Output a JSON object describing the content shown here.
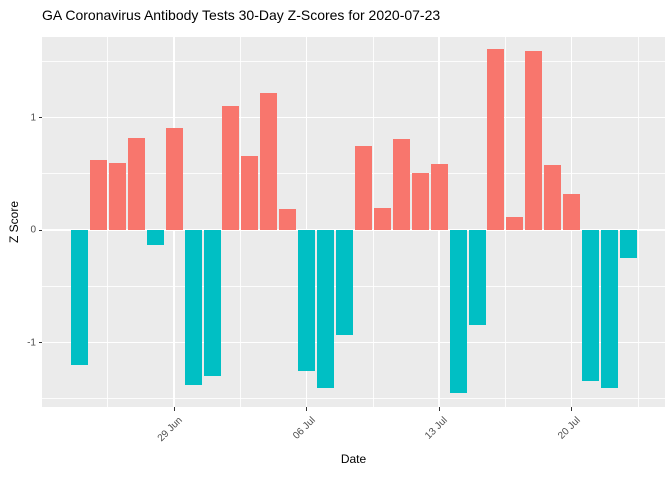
{
  "title": "GA Coronavirus Antibody Tests 30-Day Z-Scores for 2020-07-23",
  "chart_data": {
    "type": "bar",
    "title": "GA Coronavirus Antibody Tests 30-Day Z-Scores for 2020-07-23",
    "xlabel": "Date",
    "ylabel": "Z Score",
    "dates": [
      "2020-06-24",
      "2020-06-25",
      "2020-06-26",
      "2020-06-27",
      "2020-06-28",
      "2020-06-29",
      "2020-06-30",
      "2020-07-01",
      "2020-07-02",
      "2020-07-03",
      "2020-07-04",
      "2020-07-05",
      "2020-07-06",
      "2020-07-07",
      "2020-07-08",
      "2020-07-09",
      "2020-07-10",
      "2020-07-11",
      "2020-07-12",
      "2020-07-13",
      "2020-07-14",
      "2020-07-15",
      "2020-07-16",
      "2020-07-17",
      "2020-07-18",
      "2020-07-19",
      "2020-07-20",
      "2020-07-21",
      "2020-07-22",
      "2020-07-23"
    ],
    "values": [
      -1.2,
      0.62,
      0.6,
      0.82,
      -0.13,
      0.91,
      -1.38,
      -1.3,
      1.1,
      0.66,
      1.22,
      0.19,
      -1.25,
      -1.4,
      -0.93,
      0.75,
      0.2,
      0.81,
      0.51,
      0.59,
      -1.45,
      -0.84,
      1.61,
      0.12,
      1.59,
      0.58,
      0.32,
      -1.34,
      -1.4,
      -0.25
    ],
    "x_ticks": [
      {
        "day_index": 5,
        "label": "29 Jun"
      },
      {
        "day_index": 12,
        "label": "06 Jul"
      },
      {
        "day_index": 19,
        "label": "13 Jul"
      },
      {
        "day_index": 26,
        "label": "20 Jul"
      }
    ],
    "x_minor_day_indices": [
      1.5,
      8.5,
      15.5,
      22.5,
      29.5
    ],
    "y_ticks": [
      {
        "value": 1,
        "label": "1"
      },
      {
        "value": 0,
        "label": "0"
      },
      {
        "value": -1,
        "label": "-1"
      }
    ],
    "y_minor_values": [
      1.5,
      0.5,
      -0.5,
      -1.5
    ],
    "ylim": [
      -1.58,
      1.72
    ],
    "grid": "on",
    "legend": "none",
    "colors": {
      "positive_bar": "#F8766D",
      "negative_bar": "#00BFC4",
      "panel_background": "#EBEBEB",
      "gridline": "#FFFFFF",
      "axis_text": "#4D4D4D",
      "title_text": "#000000"
    }
  }
}
